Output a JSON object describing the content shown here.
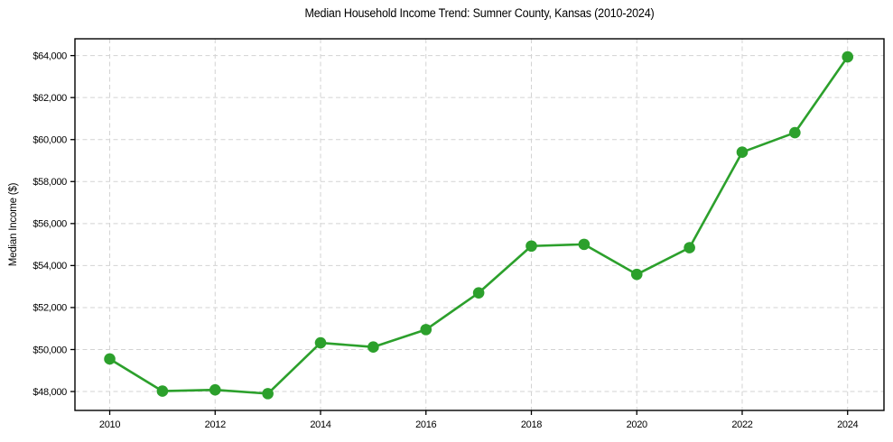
{
  "chart_data": {
    "type": "line",
    "title": "Median Household Income Trend: Sumner County, Kansas (2010-2024)",
    "xlabel": "",
    "ylabel": "Median Income ($)",
    "x": [
      2010,
      2011,
      2012,
      2013,
      2014,
      2015,
      2016,
      2017,
      2018,
      2019,
      2020,
      2021,
      2022,
      2023,
      2024
    ],
    "values": [
      49550,
      48020,
      48080,
      47900,
      50320,
      50120,
      50950,
      52700,
      54930,
      55010,
      53580,
      54850,
      59400,
      60330,
      63940
    ],
    "x_ticks": [
      2010,
      2012,
      2014,
      2016,
      2018,
      2020,
      2022,
      2024
    ],
    "x_tick_labels": [
      "2010",
      "2012",
      "2014",
      "2016",
      "2018",
      "2020",
      "2022",
      "2024"
    ],
    "y_ticks": [
      48000,
      50000,
      52000,
      54000,
      56000,
      58000,
      60000,
      62000,
      64000
    ],
    "y_tick_labels": [
      "$48,000",
      "$50,000",
      "$52,000",
      "$54,000",
      "$56,000",
      "$58,000",
      "$60,000",
      "$62,000",
      "$64,000"
    ],
    "xlim": [
      2009.34,
      2024.69
    ],
    "ylim": [
      47100,
      64800
    ],
    "grid": true,
    "grid_style": "dashed",
    "legend": false,
    "line_color": "#2ca02c",
    "grid_color": "#d3d3d3",
    "axis_color": "#000000",
    "text_color": "#000000",
    "line_width": 2.6,
    "marker": "circle",
    "marker_radius": 6.3
  }
}
